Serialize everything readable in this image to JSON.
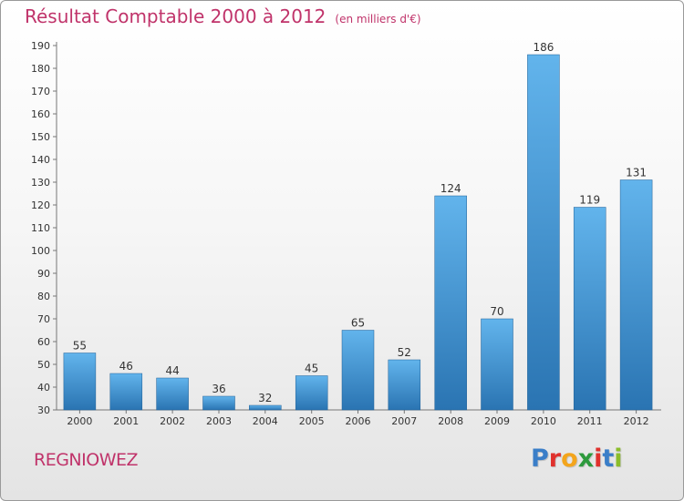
{
  "title": "Résultat Comptable 2000 à 2012",
  "subtitle": "(en milliers d'€)",
  "commune": "REGNIOWEZ",
  "logo": {
    "text": "Proxiti",
    "letters": [
      "P",
      "r",
      "o",
      "x",
      "i",
      "t",
      "i"
    ],
    "colors": [
      "#3a7ec8",
      "#e0312d",
      "#f3a51c",
      "#2d9a3d",
      "#e0312d",
      "#3a7ec8",
      "#8bbd2a"
    ]
  },
  "colors": {
    "title": "#c0336a",
    "bar_top": "#62b4ec",
    "bar_bottom": "#2a74b2",
    "axis": "#777777"
  },
  "chart_data": {
    "type": "bar",
    "title": "Résultat Comptable 2000 à 2012",
    "subtitle": "(en milliers d'€)",
    "xlabel": "",
    "ylabel": "",
    "categories": [
      "2000",
      "2001",
      "2002",
      "2003",
      "2004",
      "2005",
      "2006",
      "2007",
      "2008",
      "2009",
      "2010",
      "2011",
      "2012"
    ],
    "values": [
      55,
      46,
      44,
      36,
      32,
      45,
      65,
      52,
      124,
      70,
      186,
      119,
      131
    ],
    "ylim": [
      30,
      190
    ],
    "yticks": [
      30,
      40,
      50,
      60,
      70,
      80,
      90,
      100,
      110,
      120,
      130,
      140,
      150,
      160,
      170,
      180,
      190
    ],
    "grid": false,
    "legend": "none"
  }
}
